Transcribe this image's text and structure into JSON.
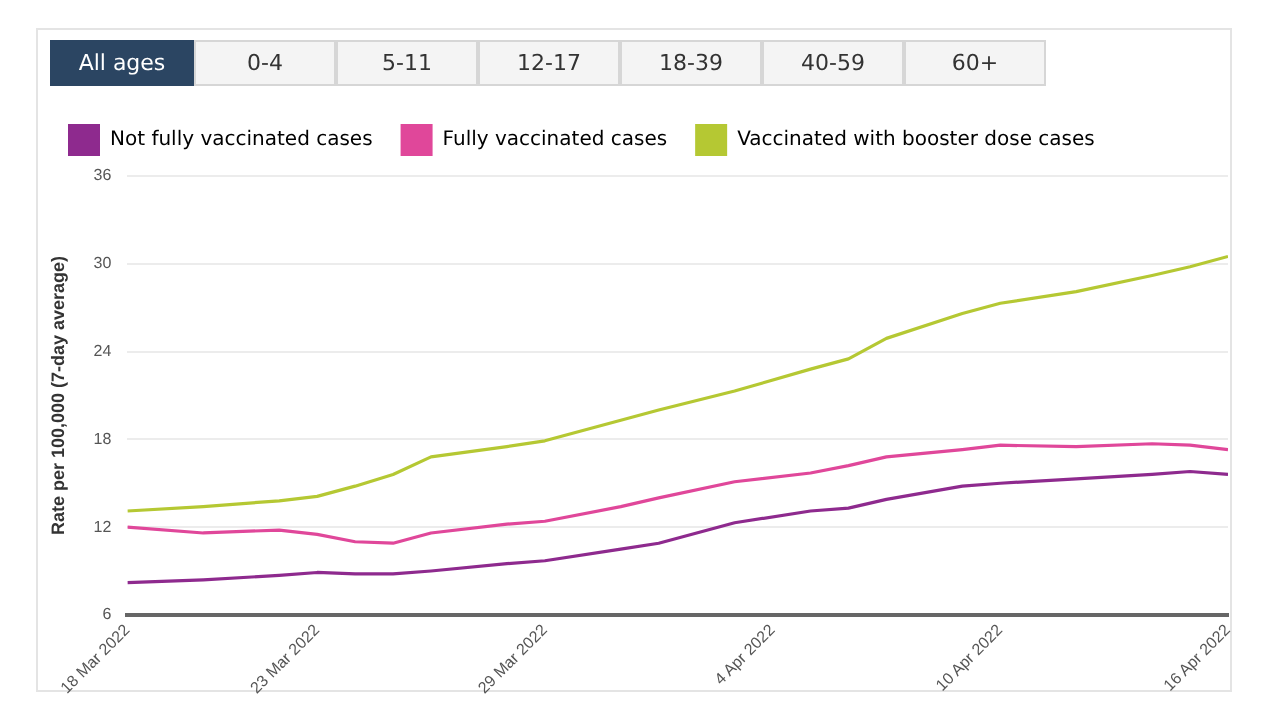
{
  "chart_data": {
    "type": "line",
    "ylabel": "Rate per 100,000 (7-day average)",
    "annotations": [
      "All ages",
      "0-4",
      "5-11",
      "12-17",
      "18-39",
      "40-59",
      "60+"
    ],
    "x": [
      "2022-03-18",
      "2022-03-20",
      "2022-03-22",
      "2022-03-23",
      "2022-03-24",
      "2022-03-25",
      "2022-03-26",
      "2022-03-28",
      "2022-03-29",
      "2022-03-31",
      "2022-04-01",
      "2022-04-03",
      "2022-04-05",
      "2022-04-06",
      "2022-04-07",
      "2022-04-09",
      "2022-04-10",
      "2022-04-12",
      "2022-04-14",
      "2022-04-15",
      "2022-04-16"
    ],
    "series": [
      {
        "name": "Not fully vaccinated cases",
        "color": "#8e2a8e",
        "values": [
          8.2,
          8.4,
          8.7,
          8.9,
          8.8,
          8.8,
          9.0,
          9.5,
          9.7,
          10.5,
          10.9,
          12.3,
          13.1,
          13.3,
          13.9,
          14.8,
          15.0,
          15.3,
          15.6,
          15.8,
          15.6
        ]
      },
      {
        "name": "Fully vaccinated cases",
        "color": "#e0479a",
        "values": [
          12.0,
          11.6,
          11.8,
          11.5,
          11.0,
          10.9,
          11.6,
          12.2,
          12.4,
          13.4,
          14.0,
          15.1,
          15.7,
          16.2,
          16.8,
          17.3,
          17.6,
          17.5,
          17.7,
          17.6,
          17.3
        ]
      },
      {
        "name": "Vaccinated with booster dose cases",
        "color": "#b5c833",
        "values": [
          13.1,
          13.4,
          13.8,
          14.1,
          14.8,
          15.6,
          16.8,
          17.5,
          17.9,
          19.3,
          20.0,
          21.3,
          22.8,
          23.5,
          24.9,
          26.6,
          27.3,
          28.1,
          29.2,
          29.8,
          30.5
        ]
      }
    ],
    "xlim": [
      "2022-03-18",
      "2022-04-16"
    ],
    "xticks": [
      {
        "value": "2022-03-18",
        "label": "18 Mar 2022"
      },
      {
        "value": "2022-03-23",
        "label": "23 Mar 2022"
      },
      {
        "value": "2022-03-29",
        "label": "29 Mar 2022"
      },
      {
        "value": "2022-04-04",
        "label": "4 Apr 2022"
      },
      {
        "value": "2022-04-10",
        "label": "10 Apr 2022"
      },
      {
        "value": "2022-04-16",
        "label": "16 Apr 2022"
      }
    ],
    "ylim": [
      6,
      36
    ],
    "yticks": [
      6,
      12,
      18,
      24,
      30,
      36
    ],
    "grid": "y",
    "legend": "top left",
    "marker": "none",
    "line_style": "solid"
  }
}
